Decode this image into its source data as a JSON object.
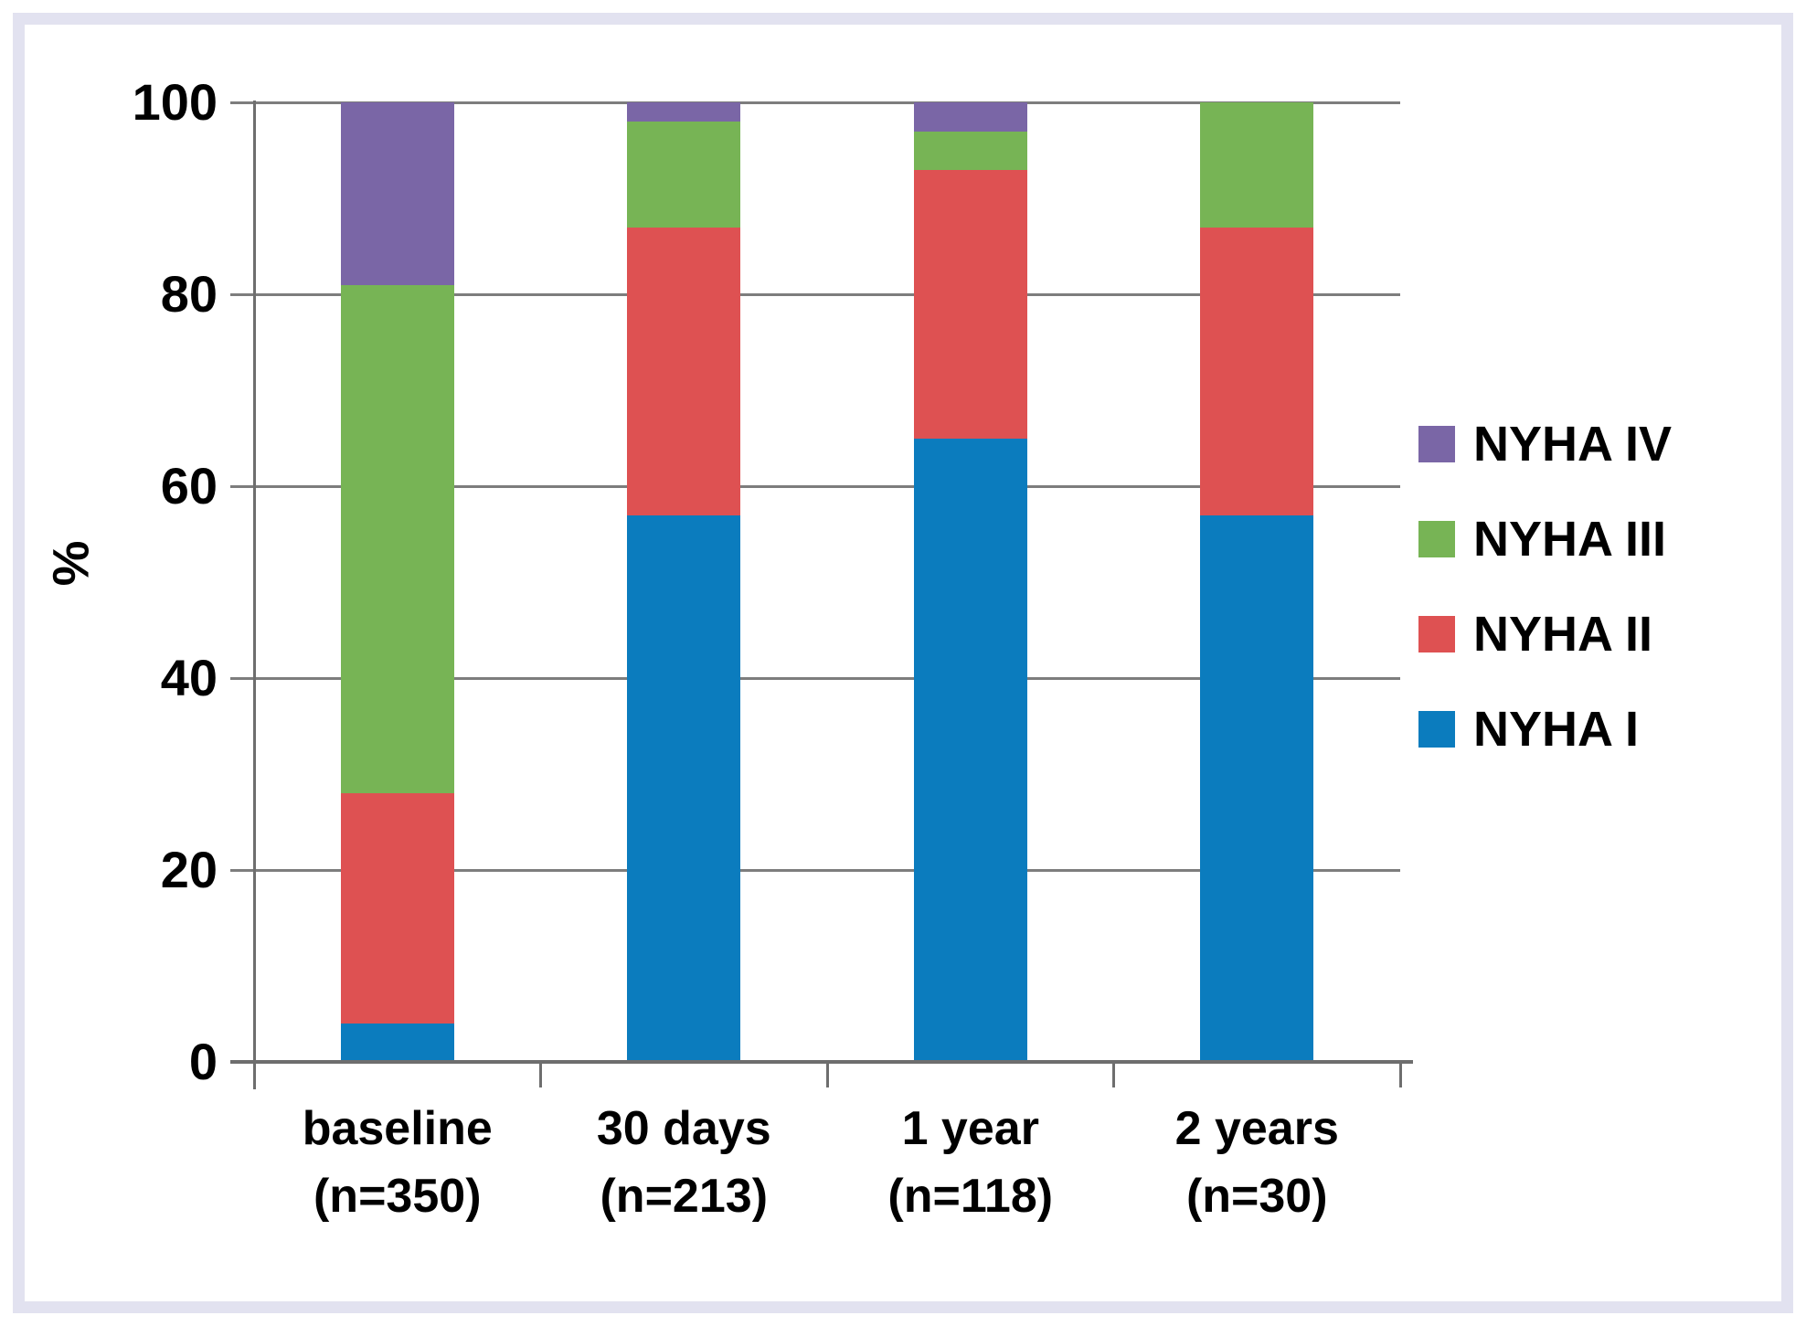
{
  "chart_data": {
    "type": "bar",
    "stacked": true,
    "title": "",
    "xlabel": "",
    "ylabel": "%",
    "ylim": [
      0,
      100
    ],
    "yticks": [
      0,
      20,
      40,
      60,
      80,
      100
    ],
    "grid": true,
    "legend_position": "right",
    "categories": [
      {
        "label": "baseline",
        "sublabel": "(n=350)"
      },
      {
        "label": "30 days",
        "sublabel": "(n=213)"
      },
      {
        "label": "1 year",
        "sublabel": "(n=118)"
      },
      {
        "label": "2 years",
        "sublabel": "(n=30)"
      }
    ],
    "series": [
      {
        "name": "NYHA I",
        "color": "#0B7CBE",
        "values": [
          4,
          57,
          65,
          57
        ]
      },
      {
        "name": "NYHA II",
        "color": "#DE5152",
        "values": [
          24,
          30,
          28,
          30
        ]
      },
      {
        "name": "NYHA III",
        "color": "#77B455",
        "values": [
          53,
          11,
          4,
          13
        ]
      },
      {
        "name": "NYHA IV",
        "color": "#7A66A6",
        "values": [
          19,
          2,
          3,
          0
        ]
      }
    ],
    "legend_order": [
      "NYHA IV",
      "NYHA III",
      "NYHA II",
      "NYHA I"
    ]
  },
  "style": {
    "background": "#FFFFFF",
    "frame_color": "#E2E2F0",
    "grid_color": "#7D7D7D",
    "axis_color": "#6E6E6E",
    "text_color": "#000000"
  }
}
